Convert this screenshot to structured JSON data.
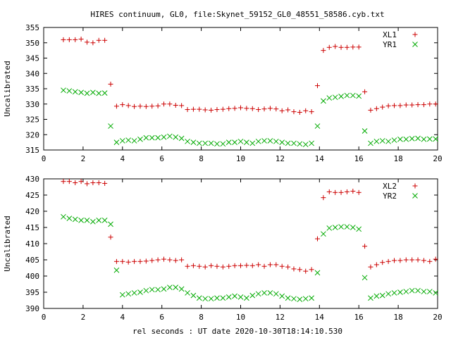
{
  "title": "HIRES continuum, GL0, file:Skynet_59152_GL0_48551_58586.cyb.txt",
  "xlabel": "rel seconds : UT date 2020-10-30T18:14:10.530",
  "colors": {
    "red": "#cc0000",
    "green": "#00aa00"
  },
  "chart_data": [
    {
      "type": "scatter",
      "ylabel": "Uncalibrated",
      "xlim": [
        0,
        20
      ],
      "ylim": [
        315,
        355
      ],
      "xticks": [
        0,
        2,
        4,
        6,
        8,
        10,
        12,
        14,
        16,
        18,
        20
      ],
      "yticks": [
        315,
        320,
        325,
        330,
        335,
        340,
        345,
        350,
        355
      ],
      "legend_position": "top-right",
      "series": [
        {
          "name": "XL1",
          "marker": "plus",
          "color": "#cc0000",
          "x": [
            1.0,
            1.3,
            1.6,
            1.9,
            2.2,
            2.5,
            2.8,
            3.1,
            3.4,
            3.7,
            4.0,
            4.3,
            4.6,
            4.9,
            5.2,
            5.5,
            5.8,
            6.1,
            6.4,
            6.7,
            7.0,
            7.3,
            7.6,
            7.9,
            8.2,
            8.5,
            8.8,
            9.1,
            9.4,
            9.7,
            10.0,
            10.3,
            10.6,
            10.9,
            11.2,
            11.5,
            11.8,
            12.1,
            12.4,
            12.7,
            13.0,
            13.3,
            13.6,
            13.9,
            14.2,
            14.5,
            14.8,
            15.1,
            15.4,
            15.7,
            16.0,
            16.3,
            16.6,
            16.9,
            17.2,
            17.5,
            17.8,
            18.1,
            18.4,
            18.7,
            19.0,
            19.3,
            19.6,
            19.9
          ],
          "y": [
            351.0,
            351.0,
            351.0,
            351.2,
            350.2,
            350.0,
            350.8,
            350.8,
            336.5,
            329.3,
            329.8,
            329.5,
            329.2,
            329.3,
            329.2,
            329.3,
            329.4,
            330.0,
            330.0,
            329.6,
            329.5,
            328.2,
            328.3,
            328.3,
            328.1,
            328.0,
            328.2,
            328.3,
            328.5,
            328.6,
            328.8,
            328.6,
            328.5,
            328.2,
            328.4,
            328.6,
            328.4,
            327.8,
            328.1,
            327.5,
            327.3,
            327.8,
            327.5,
            336.0,
            347.5,
            348.5,
            348.8,
            348.5,
            348.5,
            348.6,
            348.6,
            334.0,
            328.0,
            328.5,
            329.0,
            329.4,
            329.5,
            329.5,
            329.7,
            329.7,
            329.8,
            329.8,
            330.0,
            330.0
          ]
        },
        {
          "name": "YR1",
          "marker": "cross",
          "color": "#00aa00",
          "x": [
            1.0,
            1.3,
            1.6,
            1.9,
            2.2,
            2.5,
            2.8,
            3.1,
            3.4,
            3.7,
            4.0,
            4.3,
            4.6,
            4.9,
            5.2,
            5.5,
            5.8,
            6.1,
            6.4,
            6.7,
            7.0,
            7.3,
            7.6,
            7.9,
            8.2,
            8.5,
            8.8,
            9.1,
            9.4,
            9.7,
            10.0,
            10.3,
            10.6,
            10.9,
            11.2,
            11.5,
            11.8,
            12.1,
            12.4,
            12.7,
            13.0,
            13.3,
            13.6,
            13.9,
            14.2,
            14.5,
            14.8,
            15.1,
            15.4,
            15.7,
            16.0,
            16.3,
            16.6,
            16.9,
            17.2,
            17.5,
            17.8,
            18.1,
            18.4,
            18.7,
            19.0,
            19.3,
            19.6,
            19.9
          ],
          "y": [
            334.5,
            334.3,
            334.0,
            333.8,
            333.5,
            333.8,
            333.5,
            333.6,
            322.8,
            317.5,
            318.0,
            318.2,
            318.0,
            318.5,
            319.0,
            319.0,
            319.0,
            319.2,
            319.5,
            319.2,
            318.8,
            317.8,
            317.5,
            317.2,
            317.2,
            317.2,
            317.0,
            317.0,
            317.5,
            317.5,
            317.8,
            317.5,
            317.2,
            317.8,
            318.0,
            318.0,
            317.8,
            317.5,
            317.2,
            317.2,
            317.0,
            316.8,
            317.2,
            322.8,
            331.0,
            332.0,
            332.2,
            332.5,
            332.8,
            332.8,
            332.6,
            321.2,
            317.2,
            317.8,
            318.0,
            317.8,
            318.2,
            318.5,
            318.5,
            318.7,
            318.8,
            318.5,
            318.6,
            318.6
          ]
        }
      ]
    },
    {
      "type": "scatter",
      "ylabel": "Uncalibrated",
      "xlim": [
        0,
        20
      ],
      "ylim": [
        390,
        430
      ],
      "xticks": [
        0,
        2,
        4,
        6,
        8,
        10,
        12,
        14,
        16,
        18,
        20
      ],
      "yticks": [
        390,
        395,
        400,
        405,
        410,
        415,
        420,
        425,
        430
      ],
      "legend_position": "top-right",
      "series": [
        {
          "name": "XL2",
          "marker": "plus",
          "color": "#cc0000",
          "x": [
            1.0,
            1.3,
            1.6,
            1.9,
            2.2,
            2.5,
            2.8,
            3.1,
            3.4,
            3.7,
            4.0,
            4.3,
            4.6,
            4.9,
            5.2,
            5.5,
            5.8,
            6.1,
            6.4,
            6.7,
            7.0,
            7.3,
            7.6,
            7.9,
            8.2,
            8.5,
            8.8,
            9.1,
            9.4,
            9.7,
            10.0,
            10.3,
            10.6,
            10.9,
            11.2,
            11.5,
            11.8,
            12.1,
            12.4,
            12.7,
            13.0,
            13.3,
            13.6,
            13.9,
            14.2,
            14.5,
            14.8,
            15.1,
            15.4,
            15.7,
            16.0,
            16.3,
            16.6,
            16.9,
            17.2,
            17.5,
            17.8,
            18.1,
            18.4,
            18.7,
            19.0,
            19.3,
            19.6,
            19.9
          ],
          "y": [
            429.2,
            429.2,
            428.8,
            429.2,
            428.5,
            428.8,
            428.8,
            428.6,
            412.0,
            404.5,
            404.5,
            404.3,
            404.5,
            404.5,
            404.6,
            404.8,
            405.0,
            405.2,
            405.0,
            404.8,
            405.0,
            403.0,
            403.2,
            403.0,
            402.8,
            403.2,
            403.0,
            402.8,
            403.0,
            403.2,
            403.2,
            403.3,
            403.2,
            403.5,
            403.0,
            403.5,
            403.5,
            403.0,
            402.8,
            402.2,
            402.0,
            401.5,
            402.0,
            411.5,
            424.2,
            426.0,
            425.8,
            425.8,
            426.0,
            426.2,
            425.8,
            409.2,
            402.8,
            403.5,
            404.2,
            404.5,
            404.8,
            404.8,
            405.0,
            405.0,
            405.0,
            404.8,
            404.5,
            405.2
          ]
        },
        {
          "name": "YR2",
          "marker": "cross",
          "color": "#00aa00",
          "x": [
            1.0,
            1.3,
            1.6,
            1.9,
            2.2,
            2.5,
            2.8,
            3.1,
            3.4,
            3.7,
            4.0,
            4.3,
            4.6,
            4.9,
            5.2,
            5.5,
            5.8,
            6.1,
            6.4,
            6.7,
            7.0,
            7.3,
            7.6,
            7.9,
            8.2,
            8.5,
            8.8,
            9.1,
            9.4,
            9.7,
            10.0,
            10.3,
            10.6,
            10.9,
            11.2,
            11.5,
            11.8,
            12.1,
            12.4,
            12.7,
            13.0,
            13.3,
            13.6,
            13.9,
            14.2,
            14.5,
            14.8,
            15.1,
            15.4,
            15.7,
            16.0,
            16.3,
            16.6,
            16.9,
            17.2,
            17.5,
            17.8,
            18.1,
            18.4,
            18.7,
            19.0,
            19.3,
            19.6,
            19.9
          ],
          "y": [
            418.3,
            417.8,
            417.5,
            417.2,
            417.2,
            416.8,
            417.2,
            417.2,
            416.0,
            401.8,
            394.2,
            394.5,
            394.8,
            395.0,
            395.5,
            395.8,
            395.8,
            396.0,
            396.5,
            396.5,
            396.0,
            394.8,
            394.0,
            393.2,
            393.0,
            393.0,
            393.2,
            393.2,
            393.5,
            393.8,
            393.5,
            393.2,
            394.0,
            394.5,
            394.8,
            394.8,
            394.5,
            393.8,
            393.2,
            393.0,
            392.8,
            393.0,
            393.2,
            401.0,
            413.0,
            414.8,
            415.0,
            415.2,
            415.2,
            415.0,
            414.5,
            399.5,
            393.2,
            393.8,
            394.0,
            394.5,
            394.8,
            395.0,
            395.2,
            395.5,
            395.5,
            395.2,
            395.2,
            394.8
          ]
        }
      ]
    }
  ]
}
